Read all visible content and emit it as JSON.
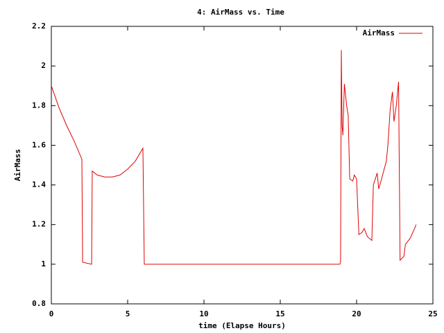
{
  "chart_data": {
    "type": "line",
    "title": "4: AirMass vs. Time",
    "xlabel": "time (Elapse Hours)",
    "ylabel": "AirMass",
    "x": [
      0,
      0.5,
      1,
      1.5,
      2,
      2.05,
      2.64,
      2.68,
      3,
      3.5,
      4,
      4.5,
      5,
      5.5,
      6,
      6.09,
      10,
      15,
      18.9,
      18.95,
      19.0,
      19.05,
      19.1,
      19.2,
      19.35,
      19.45,
      19.55,
      19.75,
      19.85,
      20.0,
      20.15,
      20.35,
      20.5,
      20.7,
      21.0,
      21.1,
      21.35,
      21.45,
      21.6,
      21.95,
      22.05,
      22.2,
      22.35,
      22.45,
      22.6,
      22.75,
      22.85,
      23.1,
      23.2,
      23.5,
      23.8,
      23.9
    ],
    "series": [
      {
        "name": "AirMass",
        "color": "#e00000",
        "values": [
          1.9,
          1.79,
          1.7,
          1.62,
          1.53,
          1.01,
          1.0,
          1.47,
          1.45,
          1.44,
          1.44,
          1.45,
          1.48,
          1.52,
          1.585,
          1.0,
          1.0,
          1.0,
          1.0,
          1.01,
          2.08,
          1.7,
          1.65,
          1.91,
          1.8,
          1.75,
          1.43,
          1.42,
          1.45,
          1.43,
          1.15,
          1.16,
          1.18,
          1.14,
          1.12,
          1.4,
          1.46,
          1.38,
          1.42,
          1.52,
          1.6,
          1.78,
          1.87,
          1.72,
          1.8,
          1.92,
          1.02,
          1.04,
          1.1,
          1.13,
          1.18,
          1.2
        ]
      }
    ],
    "xlim": [
      0,
      25
    ],
    "xticks": [
      0,
      5,
      10,
      15,
      20,
      25
    ],
    "ylim": [
      0.8,
      2.2
    ],
    "yticks": [
      0.8,
      1,
      1.2,
      1.4,
      1.6,
      1.8,
      2,
      2.2
    ],
    "legend": "upper right"
  }
}
